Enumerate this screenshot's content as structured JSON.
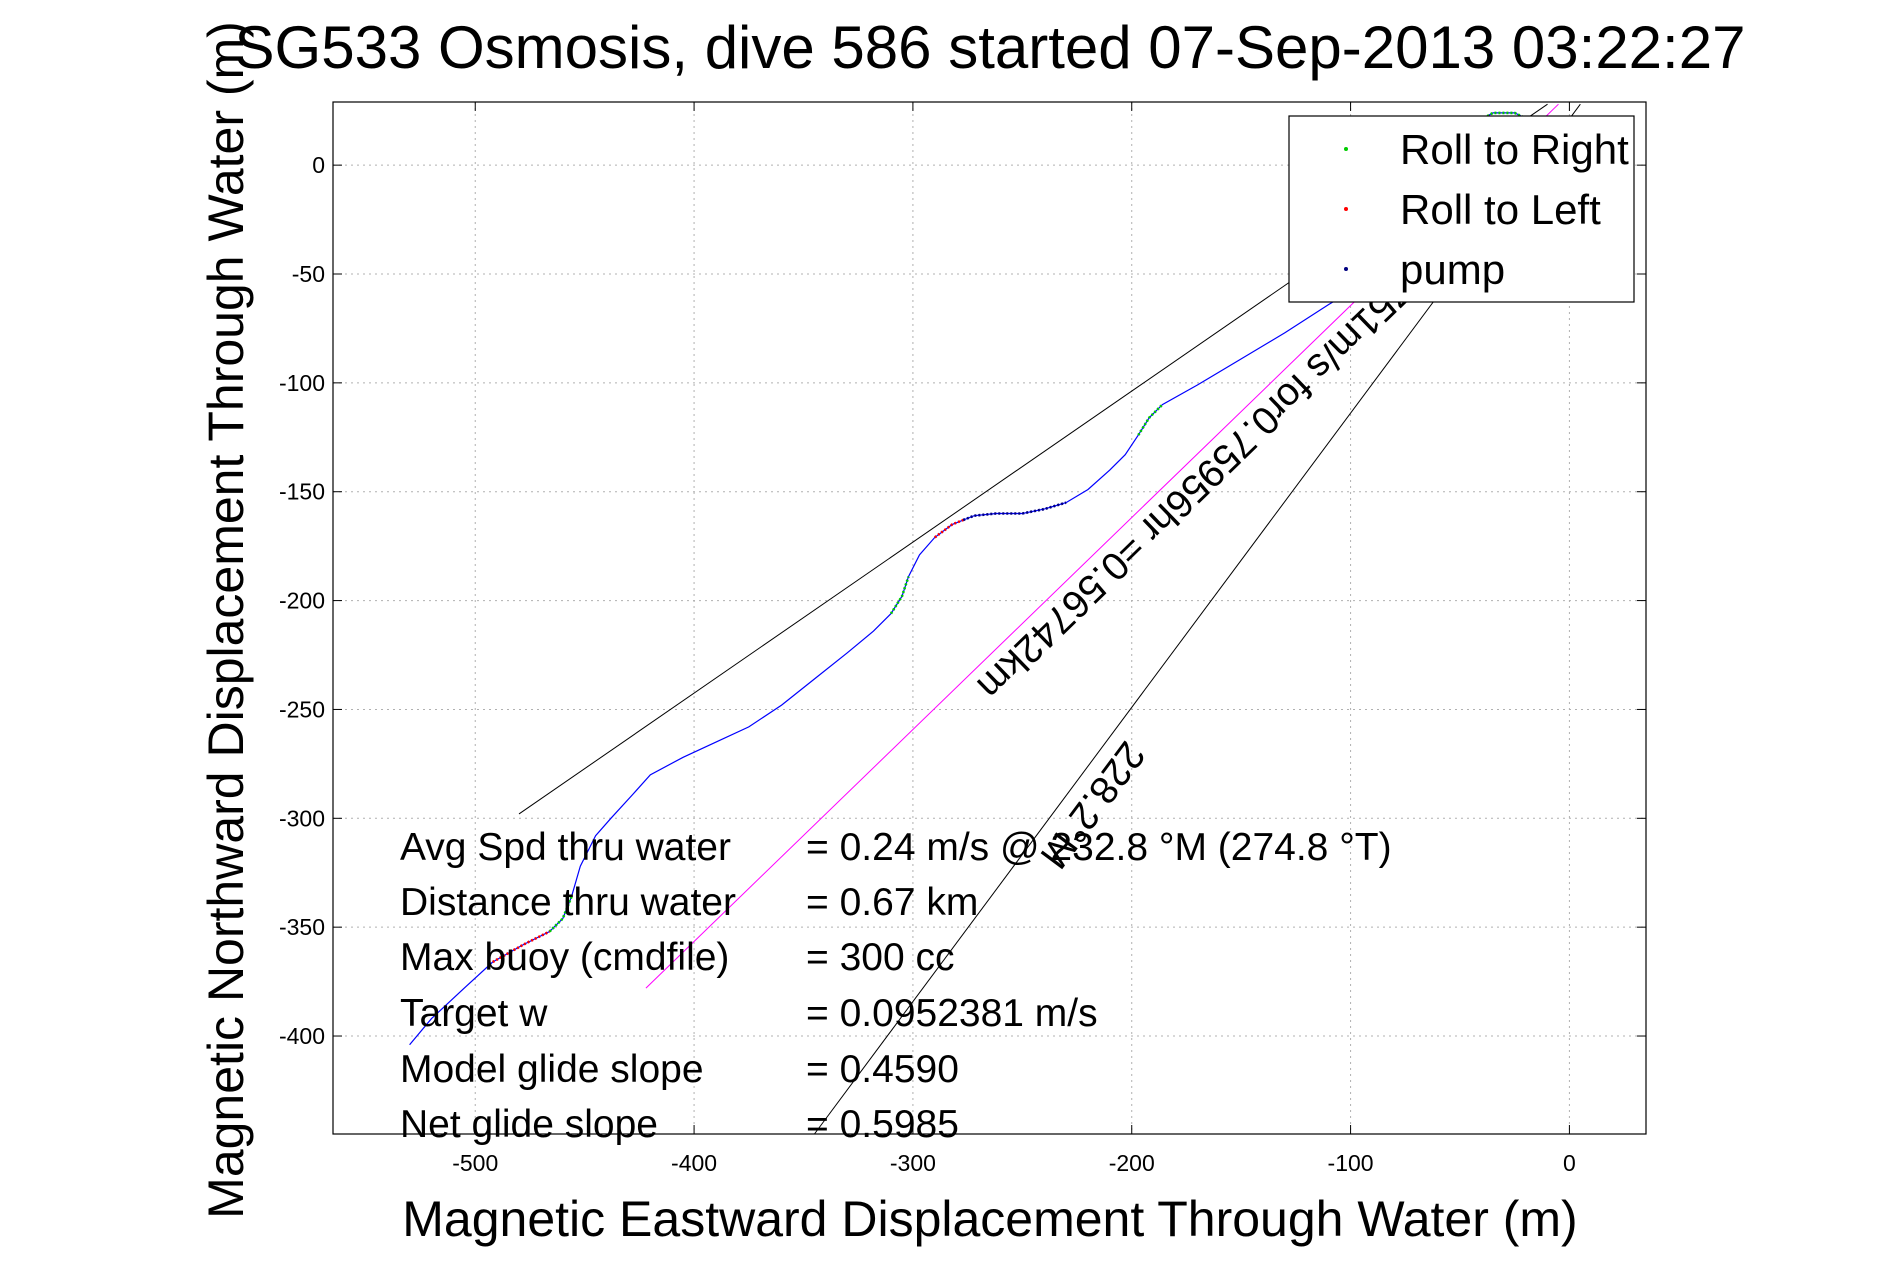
{
  "chart_data": {
    "type": "line",
    "title": "SG533 Osmosis, dive 586 started 07-Sep-2013 03:22:27",
    "xlabel": "Magnetic Eastward Displacement Through Water (m)",
    "ylabel": "Magnetic Northward Displacement Through Water (m)",
    "xlim": [
      -565,
      35
    ],
    "ylim": [
      -445,
      29
    ],
    "grid": true,
    "xticks": [
      -500,
      -400,
      -300,
      -200,
      -100,
      0
    ],
    "yticks": [
      0,
      -50,
      -100,
      -150,
      -200,
      -250,
      -300,
      -350,
      -400
    ],
    "legend": {
      "placement": "top-right",
      "entries": [
        {
          "name": "Roll to Right",
          "color": "#00cc00"
        },
        {
          "name": "Roll to Left",
          "color": "#ff0000"
        },
        {
          "name": "pump",
          "color": "#000080"
        }
      ]
    },
    "track": {
      "color": "#0000ff",
      "points": [
        [
          -530,
          -404
        ],
        [
          -520,
          -392
        ],
        [
          -505,
          -378
        ],
        [
          -492,
          -366
        ],
        [
          -478,
          -358
        ],
        [
          -466,
          -352
        ],
        [
          -460,
          -346
        ],
        [
          -456,
          -336
        ],
        [
          -452,
          -322
        ],
        [
          -445,
          -308
        ],
        [
          -438,
          -300
        ],
        [
          -428,
          -289
        ],
        [
          -420,
          -280
        ],
        [
          -405,
          -272
        ],
        [
          -390,
          -265
        ],
        [
          -375,
          -258
        ],
        [
          -360,
          -248
        ],
        [
          -345,
          -236
        ],
        [
          -330,
          -224
        ],
        [
          -318,
          -214
        ],
        [
          -310,
          -206
        ],
        [
          -305,
          -198
        ],
        [
          -302,
          -189
        ],
        [
          -297,
          -179
        ],
        [
          -290,
          -171
        ],
        [
          -282,
          -165
        ],
        [
          -272,
          -161
        ],
        [
          -262,
          -160
        ],
        [
          -250,
          -160
        ],
        [
          -240,
          -158
        ],
        [
          -230,
          -155
        ],
        [
          -220,
          -149
        ],
        [
          -210,
          -140
        ],
        [
          -203,
          -133
        ],
        [
          -197,
          -124
        ],
        [
          -192,
          -116
        ],
        [
          -186,
          -110
        ],
        [
          -170,
          -101
        ],
        [
          -150,
          -89
        ],
        [
          -130,
          -77
        ],
        [
          -110,
          -64
        ],
        [
          -95,
          -55
        ],
        [
          -85,
          -47
        ],
        [
          -70,
          -30
        ],
        [
          -55,
          0
        ],
        [
          -45,
          18
        ],
        [
          -35,
          24
        ],
        [
          -25,
          24
        ],
        [
          -15,
          19
        ]
      ]
    },
    "roll_right_segments": [
      [
        [
          -466,
          -352
        ],
        [
          -460,
          -346
        ],
        [
          -456,
          -336
        ]
      ],
      [
        [
          -310,
          -206
        ],
        [
          -305,
          -198
        ],
        [
          -302,
          -189
        ]
      ],
      [
        [
          -197,
          -124
        ],
        [
          -192,
          -116
        ],
        [
          -186,
          -110
        ]
      ],
      [
        [
          -55,
          0
        ],
        [
          -45,
          18
        ],
        [
          -35,
          24
        ],
        [
          -25,
          24
        ],
        [
          -15,
          19
        ]
      ]
    ],
    "roll_left_segments": [
      [
        [
          -492,
          -366
        ],
        [
          -478,
          -358
        ],
        [
          -466,
          -352
        ]
      ],
      [
        [
          -290,
          -171
        ],
        [
          -282,
          -165
        ],
        [
          -277,
          -163
        ]
      ]
    ],
    "pump_segments": [
      [
        [
          -277,
          -163
        ],
        [
          -272,
          -161
        ],
        [
          -262,
          -160
        ],
        [
          -250,
          -160
        ],
        [
          -240,
          -158
        ],
        [
          -230,
          -155
        ]
      ]
    ],
    "current_line": {
      "color": "#ff00ff",
      "points": [
        [
          -422,
          -378
        ],
        [
          -5,
          28
        ]
      ],
      "label": "0.0751m/s for0.75956hr =0.56742km"
    },
    "heading_line": {
      "color": "#000000",
      "points": [
        [
          -345,
          -445
        ],
        [
          5,
          28
        ]
      ],
      "label": "228.2°M"
    },
    "model_line": {
      "color": "#000000",
      "points": [
        [
          -480,
          -298
        ],
        [
          -10,
          28
        ]
      ]
    },
    "annotations": [
      {
        "label": "Avg Spd thru water",
        "value": "=  0.24 m/s @ 232.8 °M (274.8 °T)"
      },
      {
        "label": "Distance thru water",
        "value": "=  0.67 km"
      },
      {
        "label": "Max buoy (cmdfile)",
        "value": "= 300 cc"
      },
      {
        "label": "Target w",
        "value": "= 0.0952381 m/s"
      },
      {
        "label": "Model glide slope",
        "value": "= 0.4590"
      },
      {
        "label": "Net glide slope",
        "value": "= 0.5985"
      }
    ]
  }
}
